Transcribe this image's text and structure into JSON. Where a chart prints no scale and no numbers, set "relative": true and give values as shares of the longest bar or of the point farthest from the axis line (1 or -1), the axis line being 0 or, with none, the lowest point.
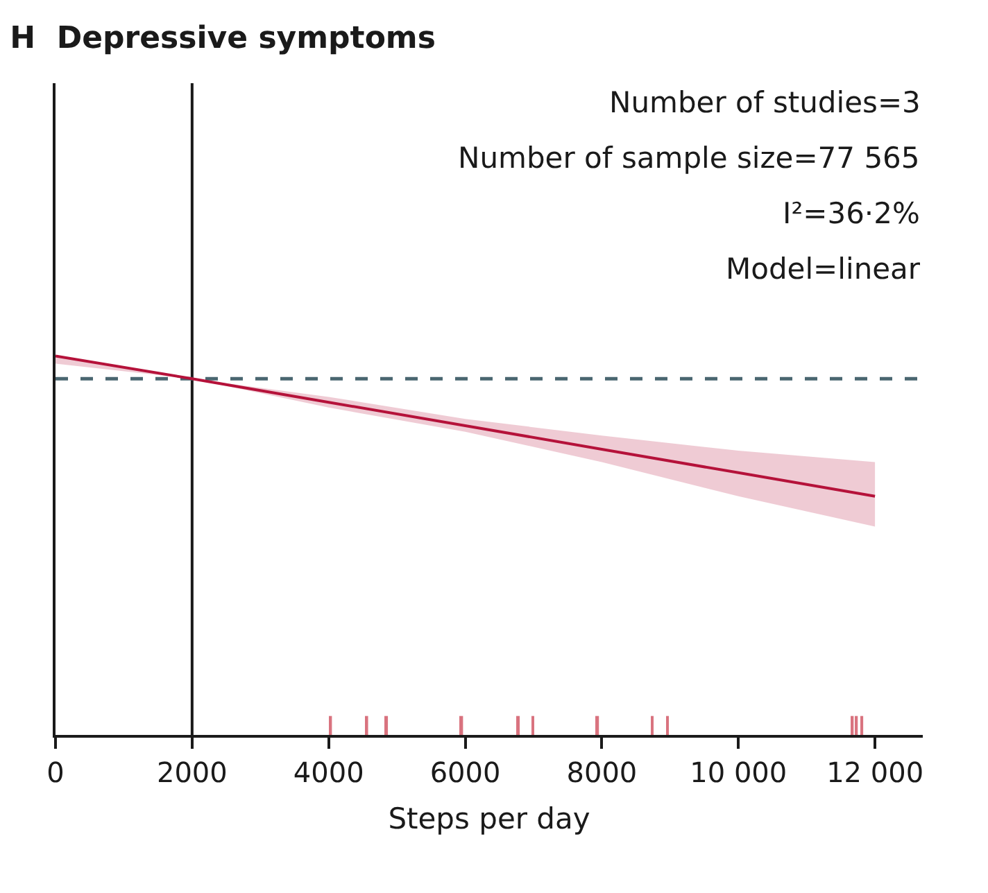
{
  "chart_data": {
    "type": "line",
    "title": "H  Depressive symptoms",
    "xlabel": "Steps per day",
    "relative": true,
    "x": [
      0,
      2000,
      4000,
      6000,
      8000,
      10000,
      12000
    ],
    "xlim": [
      0,
      12700
    ],
    "xticks": [
      0,
      2000,
      4000,
      6000,
      8000,
      {
        "value": 10000,
        "label": "10 000"
      },
      {
        "value": 12000,
        "label": "12 000"
      }
    ],
    "tick_labels": "x",
    "grid": false,
    "marker": "none",
    "line_style": "solid",
    "series": [
      {
        "color": "#b5123a",
        "values": [
          1.0,
          0.94,
          0.878,
          0.816,
          0.754,
          0.692,
          0.63
        ],
        "lower": [
          0.98,
          0.94,
          0.864,
          0.8,
          0.72,
          0.63,
          0.55
        ],
        "upper": [
          1.0,
          0.94,
          0.892,
          0.834,
          0.79,
          0.75,
          0.72
        ]
      },
      {
        "type": "bar",
        "color": "#d9737f",
        "x": [
          4030,
          4560,
          4850,
          5950,
          6780,
          6990,
          7940,
          8740,
          8960,
          11670,
          11730,
          11810
        ],
        "values": [
          0.05,
          0.05,
          0.05,
          0.05,
          0.05,
          0.05,
          0.05,
          0.05,
          0.05,
          0.05,
          0.05,
          0.05
        ]
      }
    ],
    "ref_lines": [
      {
        "axis": "x",
        "value": 2000,
        "color": "#1a1a1a",
        "line_style": "solid"
      },
      {
        "axis": "y",
        "value": 0.94,
        "color": "#4a6670",
        "line_style": "dashed"
      }
    ],
    "annotations": [
      "Number of studies=3",
      "Number of sample size=77 565",
      "I²=36·2%",
      "Model=linear"
    ]
  }
}
